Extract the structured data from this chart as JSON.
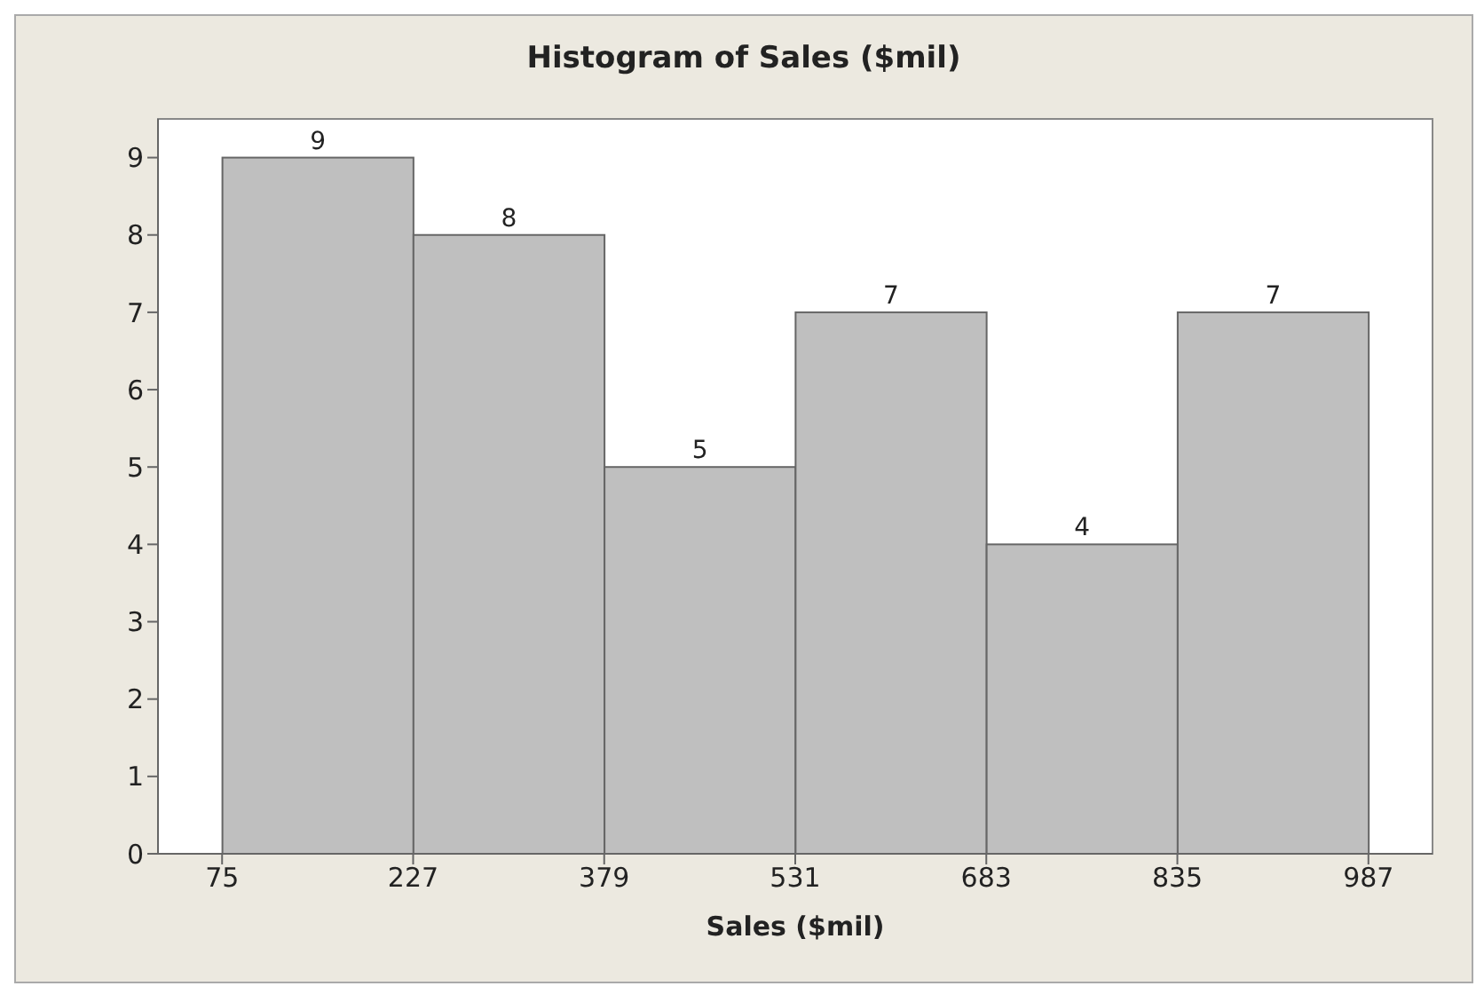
{
  "chart_data": {
    "type": "histogram",
    "title": "Histogram of Sales ($mil)",
    "xlabel": "Sales ($mil)",
    "bins": [
      75,
      227,
      379,
      531,
      683,
      835,
      987
    ],
    "values": [
      9,
      8,
      5,
      7,
      4,
      7
    ],
    "color": "#bfbfbf",
    "xlim": [
      24,
      1038
    ],
    "xticks": [
      75,
      227,
      379,
      531,
      683,
      835,
      987
    ],
    "ylim": [
      0,
      9.5
    ],
    "yticks": [
      0,
      1,
      2,
      3,
      4,
      5,
      6,
      7,
      8,
      9
    ],
    "data_labels": true
  }
}
